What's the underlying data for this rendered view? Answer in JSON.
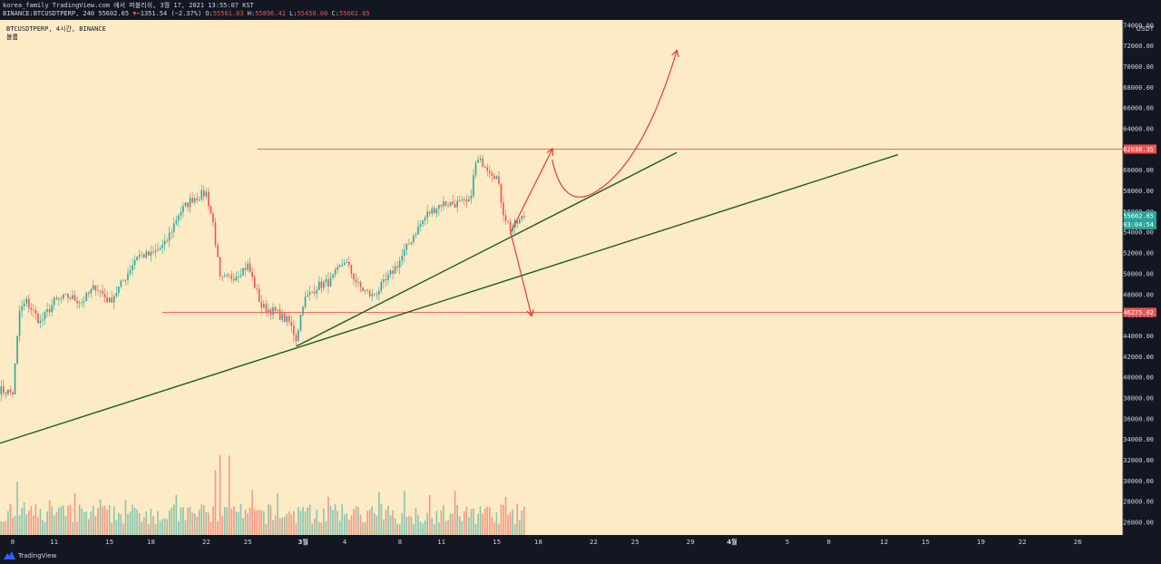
{
  "header": {
    "line1": "korea_family TradingView.com 에서 퍼블리쉬, 3월 17, 2021 13:55:07 KST",
    "symbol_line": "BINANCE:BTCUSDTPERP, 240 55602.65",
    "change_arrow": "▼",
    "change": "−1351.54 (−2.37%)",
    "o_label": "O:",
    "o_value": "55561.83",
    "h_label": "H:",
    "h_value": "55896.41",
    "l_label": "L:",
    "l_value": "55450.00",
    "c_label": "C:",
    "c_value": "55602.65"
  },
  "legend": {
    "symbol": "BTCUSDTPERP, 4시간, BINANCE",
    "volume_label": "볼륨"
  },
  "footer": {
    "brand": "TradingView"
  },
  "colors": {
    "background": "#fdebc6",
    "up": "#26a69a",
    "down": "#ef5350",
    "trendline": "#1b5e20",
    "arrow": "#e53935",
    "hline": "#ef5350",
    "axis_bg": "#131722"
  },
  "chart_data": {
    "type": "candlestick",
    "y_axis": {
      "unit": "USDT",
      "range": [
        25000,
        74500
      ],
      "ticks": [
        26000,
        28000,
        30000,
        32000,
        34000,
        36000,
        38000,
        40000,
        42000,
        44000,
        46000,
        48000,
        50000,
        52000,
        54000,
        56000,
        58000,
        60000,
        62000,
        64000,
        66000,
        68000,
        70000,
        72000,
        74000
      ],
      "tick_labels": [
        "26000.00",
        "28000.00",
        "30000.00",
        "32000.00",
        "34000.00",
        "36000.00",
        "38000.00",
        "40000.00",
        "42000.00",
        "44000.00",
        "46000.00",
        "48000.00",
        "50000.00",
        "52000.00",
        "54000.00",
        "56000.00",
        "58000.00",
        "60000.00",
        "62000.00",
        "64000.00",
        "66000.00",
        "68000.00",
        "70000.00",
        "72000.00",
        "74000.00"
      ]
    },
    "x_axis": {
      "ticks": [
        {
          "date": "2021-02-08",
          "label": "8"
        },
        {
          "date": "2021-02-11",
          "label": "11"
        },
        {
          "date": "2021-02-15",
          "label": "15"
        },
        {
          "date": "2021-02-18",
          "label": "18"
        },
        {
          "date": "2021-02-22",
          "label": "22"
        },
        {
          "date": "2021-02-25",
          "label": "25"
        },
        {
          "date": "2021-03-01",
          "label": "3월"
        },
        {
          "date": "2021-03-04",
          "label": "4"
        },
        {
          "date": "2021-03-08",
          "label": "8"
        },
        {
          "date": "2021-03-11",
          "label": "11"
        },
        {
          "date": "2021-03-15",
          "label": "15"
        },
        {
          "date": "2021-03-18",
          "label": "18"
        },
        {
          "date": "2021-03-22",
          "label": "22"
        },
        {
          "date": "2021-03-25",
          "label": "25"
        },
        {
          "date": "2021-03-29",
          "label": "29"
        },
        {
          "date": "2021-04-01",
          "label": "4월"
        },
        {
          "date": "2021-04-05",
          "label": "5"
        },
        {
          "date": "2021-04-08",
          "label": "8"
        },
        {
          "date": "2021-04-12",
          "label": "12"
        },
        {
          "date": "2021-04-15",
          "label": "15"
        },
        {
          "date": "2021-04-19",
          "label": "19"
        },
        {
          "date": "2021-04-22",
          "label": "22"
        },
        {
          "date": "2021-04-26",
          "label": "26"
        }
      ]
    },
    "price_path": [
      {
        "date": "2021-02-07",
        "price": 38800
      },
      {
        "date": "2021-02-08",
        "price": 38500
      },
      {
        "date": "2021-02-08 12:00",
        "price": 46400
      },
      {
        "date": "2021-02-09",
        "price": 47300
      },
      {
        "date": "2021-02-10",
        "price": 45300
      },
      {
        "date": "2021-02-11",
        "price": 47300
      },
      {
        "date": "2021-02-12",
        "price": 47800
      },
      {
        "date": "2021-02-13",
        "price": 47300
      },
      {
        "date": "2021-02-14",
        "price": 48800
      },
      {
        "date": "2021-02-15",
        "price": 47300
      },
      {
        "date": "2021-02-16",
        "price": 49300
      },
      {
        "date": "2021-02-17",
        "price": 51800
      },
      {
        "date": "2021-02-18",
        "price": 51800
      },
      {
        "date": "2021-02-19",
        "price": 52800
      },
      {
        "date": "2021-02-20",
        "price": 55800
      },
      {
        "date": "2021-02-21",
        "price": 57300
      },
      {
        "date": "2021-02-22",
        "price": 57800
      },
      {
        "date": "2021-02-22 12:00",
        "price": 54800
      },
      {
        "date": "2021-02-23",
        "price": 49300
      },
      {
        "date": "2021-02-24",
        "price": 49800
      },
      {
        "date": "2021-02-25",
        "price": 50800
      },
      {
        "date": "2021-02-26",
        "price": 46800
      },
      {
        "date": "2021-02-27",
        "price": 46300
      },
      {
        "date": "2021-02-28",
        "price": 45300
      },
      {
        "date": "2021-02-28 12:00",
        "price": 43700
      },
      {
        "date": "2021-03-01",
        "price": 47300
      },
      {
        "date": "2021-03-02",
        "price": 48800
      },
      {
        "date": "2021-03-03",
        "price": 49300
      },
      {
        "date": "2021-03-04",
        "price": 51300
      },
      {
        "date": "2021-03-05",
        "price": 48800
      },
      {
        "date": "2021-03-06",
        "price": 47800
      },
      {
        "date": "2021-03-07",
        "price": 49300
      },
      {
        "date": "2021-03-08",
        "price": 51300
      },
      {
        "date": "2021-03-09",
        "price": 53800
      },
      {
        "date": "2021-03-10",
        "price": 55800
      },
      {
        "date": "2021-03-11",
        "price": 56800
      },
      {
        "date": "2021-03-12",
        "price": 56800
      },
      {
        "date": "2021-03-13",
        "price": 56800
      },
      {
        "date": "2021-03-13 12:00",
        "price": 60800
      },
      {
        "date": "2021-03-14",
        "price": 60800
      },
      {
        "date": "2021-03-15",
        "price": 59300
      },
      {
        "date": "2021-03-15 12:00",
        "price": 55800
      },
      {
        "date": "2021-03-16",
        "price": 54300
      },
      {
        "date": "2021-03-17",
        "price": 55602.65
      }
    ],
    "volume_series_label": "볼륨",
    "horizontal_levels": [
      {
        "price": 62038.35,
        "label": "62038.35"
      },
      {
        "price": 46275.02,
        "label": "46275.02"
      }
    ],
    "last_price": {
      "price": 55602.65,
      "label": "55602.65",
      "countdown": "03:04:54"
    },
    "trendlines": [
      {
        "from": {
          "date": "2021-02-07",
          "price": 33600
        },
        "to": {
          "date": "2021-04-13",
          "price": 61500
        }
      },
      {
        "from": {
          "date": "2021-02-28 12:00",
          "price": 43000
        },
        "to": {
          "date": "2021-03-28",
          "price": 61700
        }
      }
    ],
    "projection_arrows": [
      {
        "points": [
          {
            "date": "2021-03-16",
            "price": 54000
          },
          {
            "date": "2021-03-19",
            "price": 62000
          }
        ]
      },
      {
        "points": [
          {
            "date": "2021-03-16",
            "price": 54000
          },
          {
            "date": "2021-03-17 12:00",
            "price": 46000
          }
        ]
      },
      {
        "points": [
          {
            "date": "2021-03-19",
            "price": 61000
          },
          {
            "date": "2021-03-22",
            "price": 57800
          },
          {
            "date": "2021-03-25",
            "price": 61000
          },
          {
            "date": "2021-03-28",
            "price": 71500
          }
        ]
      }
    ]
  }
}
